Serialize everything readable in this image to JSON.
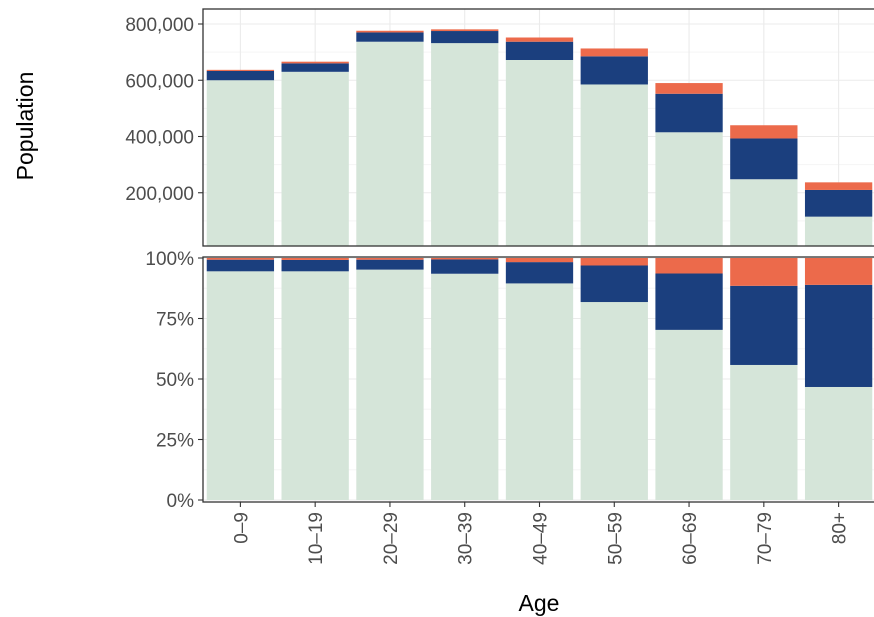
{
  "chart_data": {
    "type": "bar",
    "ylabel": "Population",
    "xlabel": "Age",
    "categories": [
      "0–9",
      "10–19",
      "20–29",
      "30–39",
      "40–49",
      "50–59",
      "60–69",
      "70–79",
      "80+"
    ],
    "colors": {
      "light": "#d5e5d9",
      "dark": "#1b3f7e",
      "orange": "#ec6a4b",
      "grid_major": "#ebebeb",
      "grid_minor": "#f5f5f5",
      "axis": "#333333"
    },
    "panels": [
      {
        "type": "bar",
        "stacked": true,
        "ylim": [
          0,
          800000
        ],
        "yticks": [
          200000,
          400000,
          600000,
          800000
        ],
        "ytick_labels": [
          "200,000",
          "400,000",
          "600,000",
          "800,000"
        ],
        "grid": true,
        "series": [
          {
            "color_key": "light",
            "values": [
              600000,
              630000,
              737000,
              732000,
              672000,
              585000,
              415000,
              248000,
              115000
            ]
          },
          {
            "color_key": "dark",
            "values": [
              33000,
              30000,
              33000,
              43000,
              65000,
              100000,
              137000,
              145000,
              95000
            ]
          },
          {
            "color_key": "orange",
            "values": [
              4000,
              6000,
              6000,
              6000,
              15000,
              28000,
              38000,
              47000,
              27000
            ]
          }
        ]
      },
      {
        "type": "bar",
        "stacked": true,
        "ylim": [
          0,
          1
        ],
        "yticks": [
          0,
          0.25,
          0.5,
          0.75,
          1.0
        ],
        "ytick_labels": [
          "0%",
          "25%",
          "50%",
          "75%",
          "100%"
        ],
        "grid": true,
        "series": [
          {
            "color_key": "light",
            "values": [
              0.945,
              0.945,
              0.952,
              0.935,
              0.895,
              0.818,
              0.703,
              0.558,
              0.467
            ]
          },
          {
            "color_key": "dark",
            "values": [
              0.048,
              0.047,
              0.041,
              0.059,
              0.088,
              0.151,
              0.233,
              0.327,
              0.422
            ]
          },
          {
            "color_key": "orange",
            "values": [
              0.007,
              0.008,
              0.007,
              0.006,
              0.017,
              0.031,
              0.064,
              0.115,
              0.111
            ]
          }
        ]
      }
    ]
  }
}
